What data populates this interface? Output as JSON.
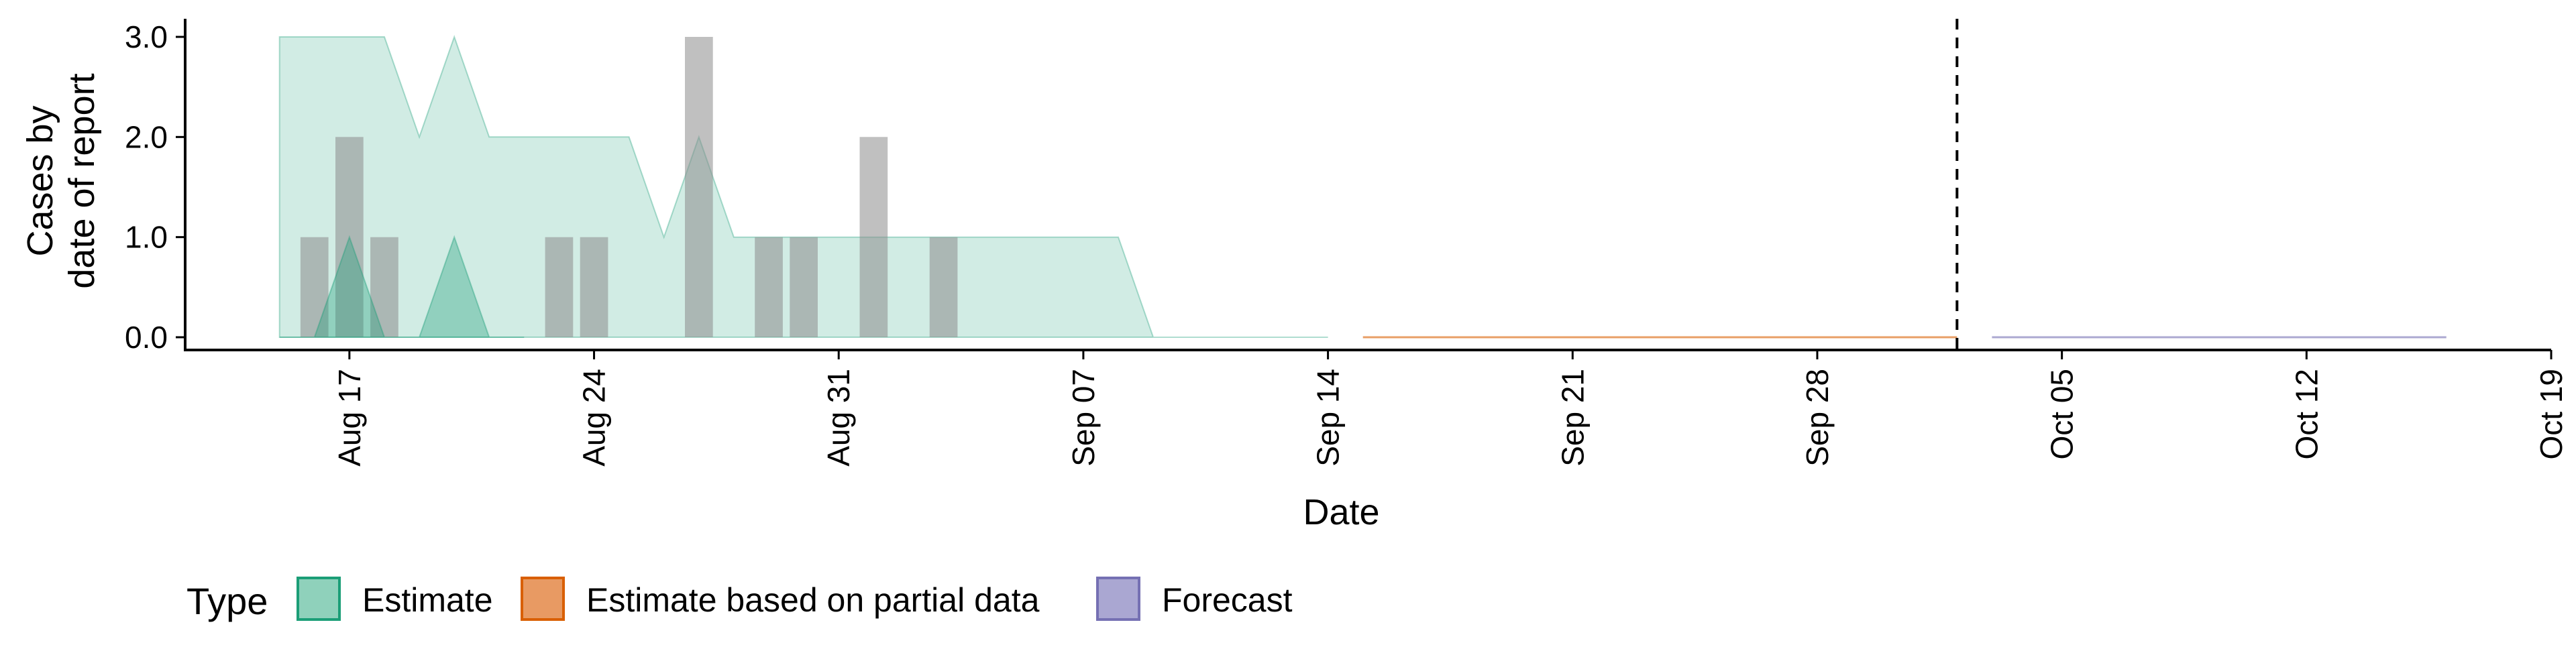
{
  "chart_data": {
    "type": "area",
    "xlabel": "Date",
    "ylabel_lines": [
      "Cases by",
      "date of report"
    ],
    "y_ticks": [
      {
        "value": 0,
        "label": "0.0"
      },
      {
        "value": 1,
        "label": "1.0"
      },
      {
        "value": 2,
        "label": "2.0"
      },
      {
        "value": 3,
        "label": "3.0"
      }
    ],
    "x_ticks": [
      {
        "day": 17,
        "label": "Aug 17"
      },
      {
        "day": 24,
        "label": "Aug 24"
      },
      {
        "day": 31,
        "label": "Aug 31"
      },
      {
        "day": 38,
        "label": "Sep 07"
      },
      {
        "day": 45,
        "label": "Sep 14"
      },
      {
        "day": 52,
        "label": "Sep 21"
      },
      {
        "day": 59,
        "label": "Sep 28"
      },
      {
        "day": 66,
        "label": "Oct 05"
      },
      {
        "day": 73,
        "label": "Oct 12"
      },
      {
        "day": 80,
        "label": "Oct 19"
      }
    ],
    "forecast_date": "Oct 02",
    "forecast_day": 63,
    "reported_cases": {
      "x": [
        "Aug 16",
        "Aug 17",
        "Aug 18",
        "Aug 23",
        "Aug 24",
        "Aug 27",
        "Aug 29",
        "Aug 30",
        "Sep 01",
        "Sep 03"
      ],
      "y": [
        1,
        2,
        1,
        1,
        1,
        3,
        1,
        1,
        2,
        1
      ]
    },
    "series": [
      {
        "name": "Estimate",
        "color": "#1b9e77",
        "outer_band": {
          "x": [
            "Aug 15",
            "Aug 16",
            "Aug 17",
            "Aug 18",
            "Aug 19",
            "Aug 20",
            "Aug 21",
            "Aug 22",
            "Aug 23",
            "Aug 24",
            "Aug 25",
            "Aug 26",
            "Aug 27",
            "Aug 28",
            "Aug 29",
            "Aug 30",
            "Aug 31",
            "Sep 01",
            "Sep 02",
            "Sep 03",
            "Sep 04",
            "Sep 05",
            "Sep 06",
            "Sep 07",
            "Sep 08",
            "Sep 09",
            "Sep 10",
            "Sep 11",
            "Sep 12",
            "Sep 13",
            "Sep 14"
          ],
          "lower": [
            0,
            0,
            0,
            0,
            0,
            0,
            0,
            0,
            0,
            0,
            0,
            0,
            0,
            0,
            0,
            0,
            0,
            0,
            0,
            0,
            0,
            0,
            0,
            0,
            0,
            0,
            0,
            0,
            0,
            0,
            0
          ],
          "upper": [
            3,
            3,
            3,
            3,
            2,
            3,
            2,
            2,
            2,
            2,
            2,
            1,
            2,
            1,
            1,
            1,
            1,
            1,
            1,
            1,
            1,
            1,
            1,
            1,
            1,
            0,
            0,
            0,
            0,
            0,
            0
          ]
        },
        "inner_band": {
          "x": [
            "Aug 15",
            "Aug 16",
            "Aug 17",
            "Aug 18",
            "Aug 19",
            "Aug 20",
            "Aug 21",
            "Aug 22"
          ],
          "lower": [
            0,
            0,
            0,
            0,
            0,
            0,
            0,
            0
          ],
          "upper": [
            0,
            0,
            1,
            0,
            0,
            1,
            0,
            0
          ]
        }
      },
      {
        "name": "Estimate based on partial data",
        "color": "#d95f02",
        "x": [
          "Sep 15",
          "Oct 02"
        ],
        "y": [
          0,
          0
        ]
      },
      {
        "name": "Forecast",
        "color": "#7570b3",
        "x": [
          "Oct 03",
          "Oct 16"
        ],
        "y": [
          0,
          0
        ]
      }
    ],
    "legend": {
      "title": "Type",
      "position": "bottom-left",
      "items": [
        {
          "label": "Estimate",
          "fill": "#8fd1bb",
          "stroke": "#1b9e77"
        },
        {
          "label": "Estimate based on partial data",
          "fill": "#e89a63",
          "stroke": "#d95f02"
        },
        {
          "label": "Forecast",
          "fill": "#aaa7d2",
          "stroke": "#7570b3"
        }
      ]
    },
    "ylim": [
      0,
      3
    ],
    "grid": false
  }
}
